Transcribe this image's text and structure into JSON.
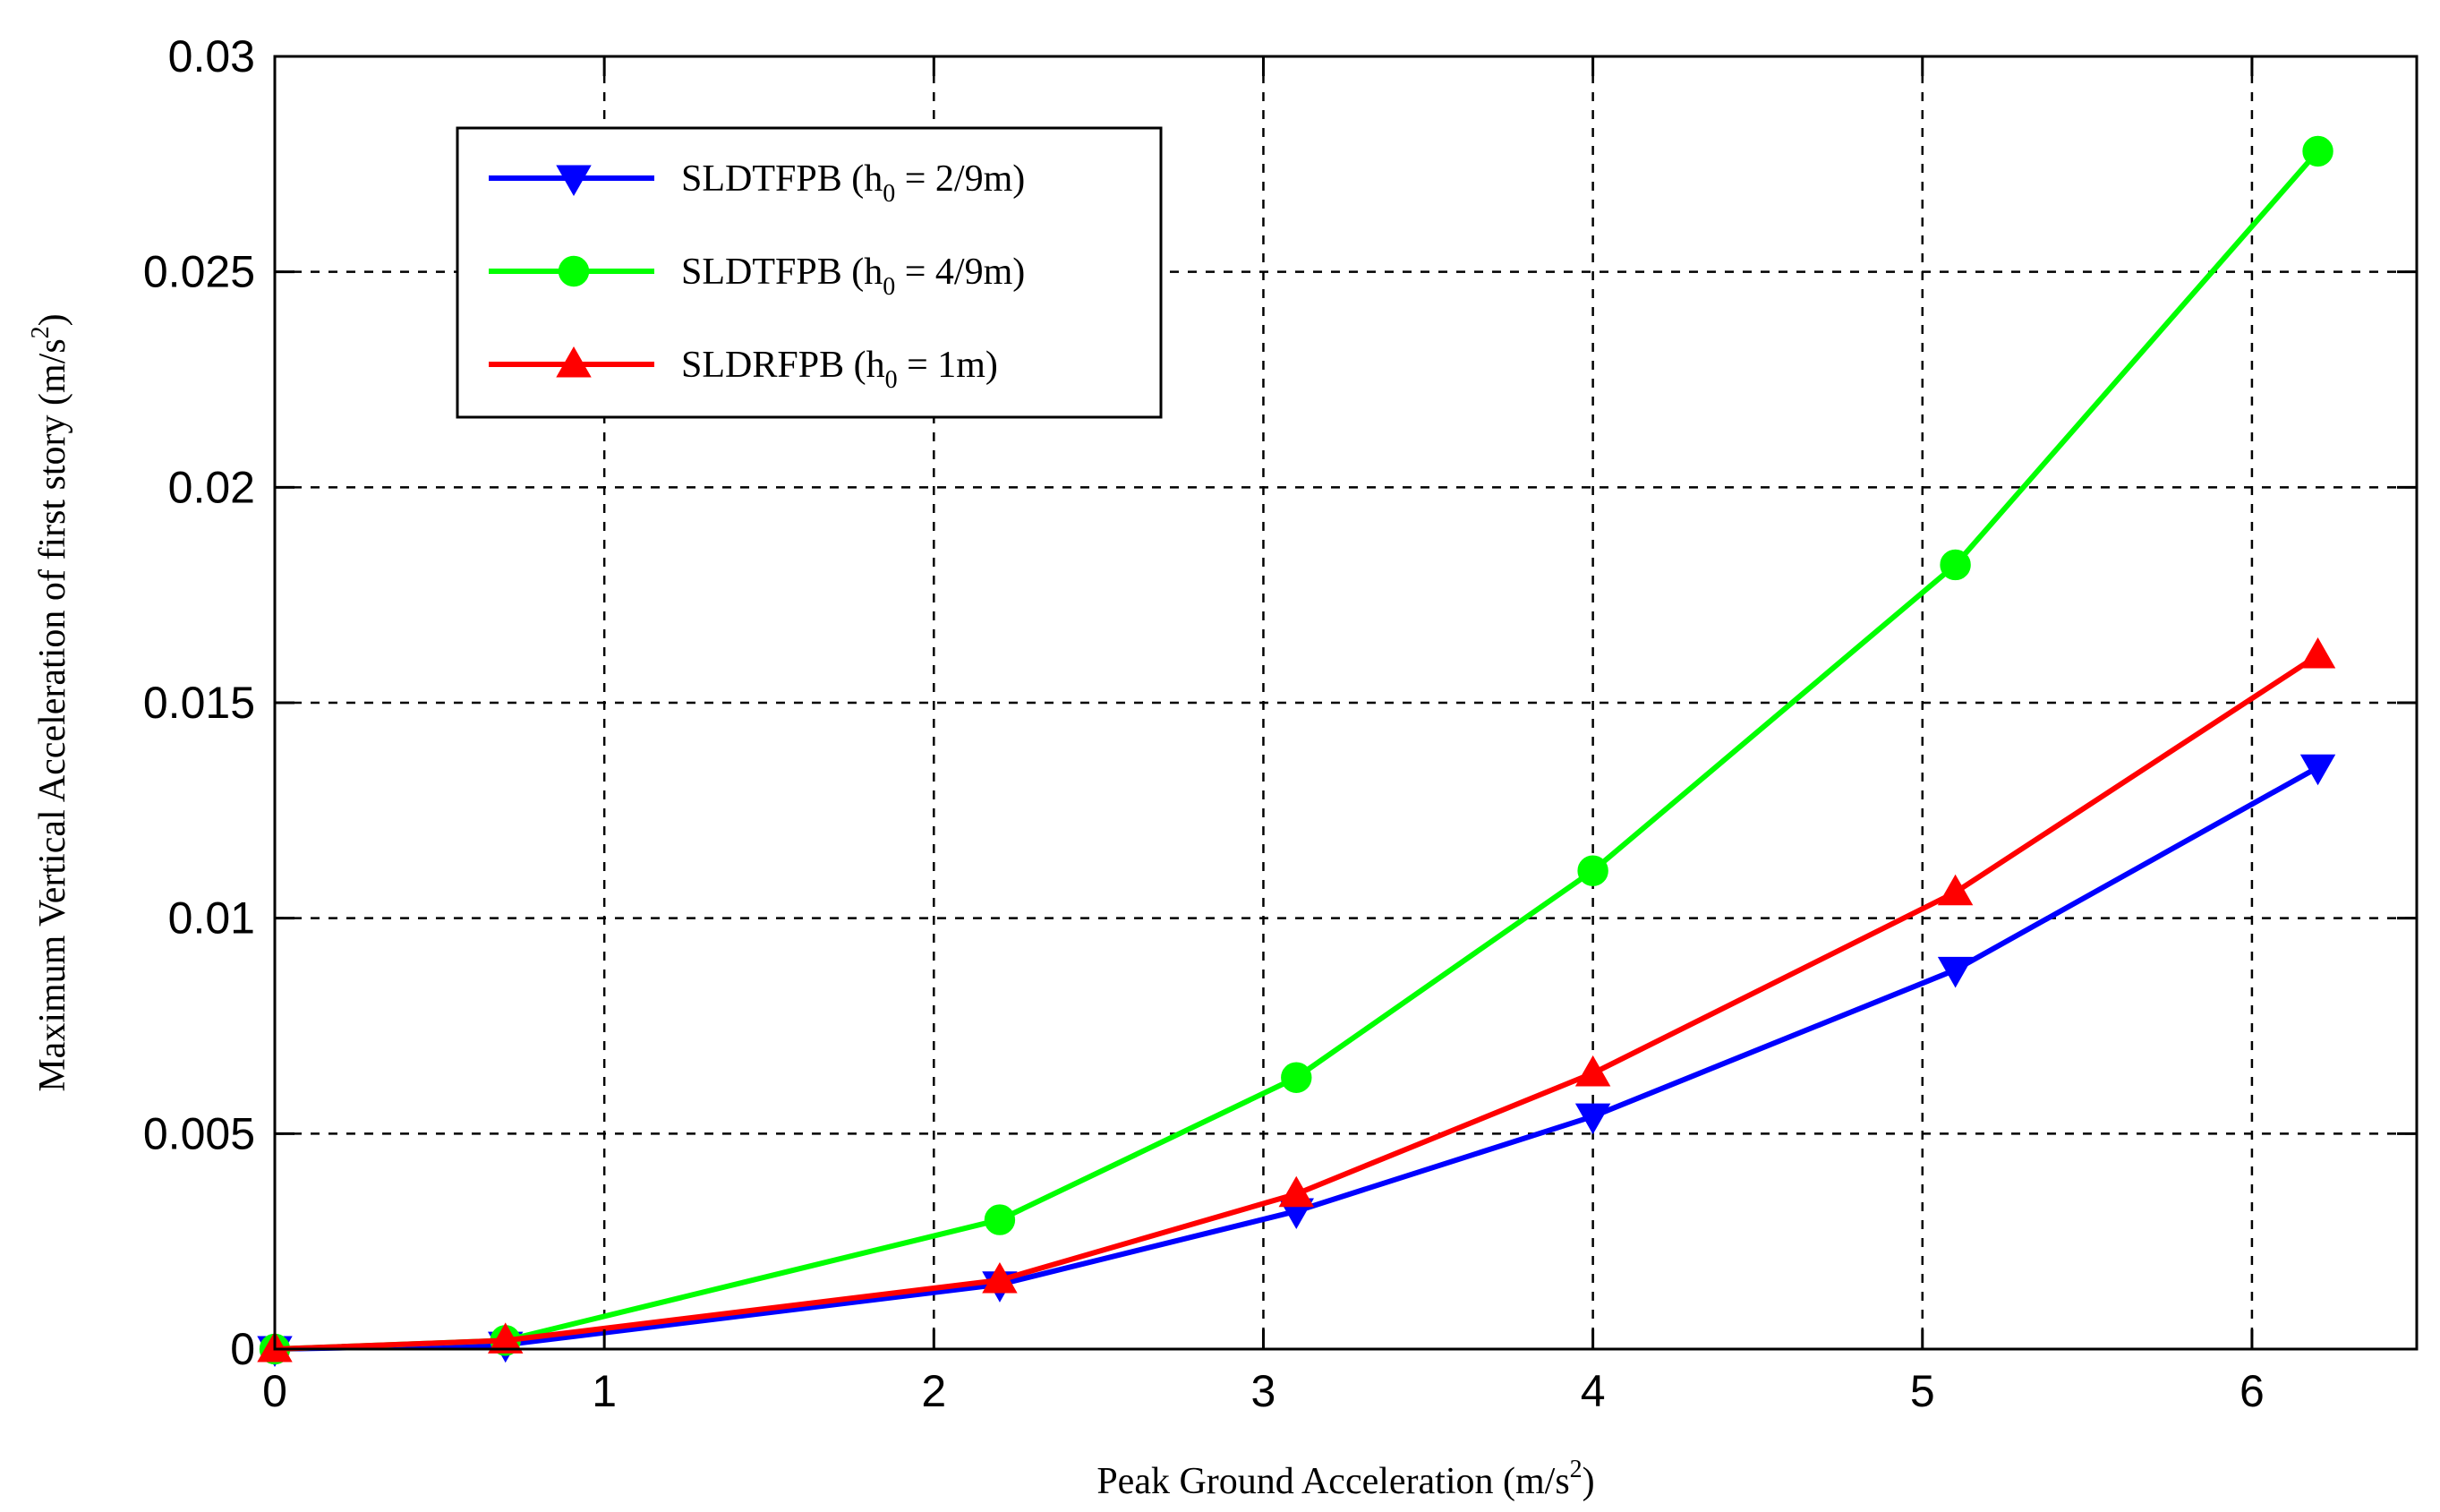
{
  "chart_data": {
    "type": "line",
    "title": "",
    "xlabel": {
      "prefix": "Peak Ground Acceleration (m/s",
      "sup": "2",
      "suffix": ")"
    },
    "ylabel": {
      "prefix": "Maximum Vertical Acceleration of first story (m/s",
      "sup": "2",
      "suffix": ")"
    },
    "xlim": [
      0,
      6.5
    ],
    "ylim": [
      0,
      0.03
    ],
    "xticks": [
      0,
      1,
      2,
      3,
      4,
      5,
      6
    ],
    "xtick_labels": [
      "0",
      "1",
      "2",
      "3",
      "4",
      "5",
      "6"
    ],
    "yticks": [
      0,
      0.005,
      0.01,
      0.015,
      0.02,
      0.025,
      0.03
    ],
    "ytick_labels": [
      "0",
      "0.005",
      "0.01",
      "0.015",
      "0.02",
      "0.025",
      "0.03"
    ],
    "grid": true,
    "legend_position": "top-left",
    "series": [
      {
        "name": "SLDTFPB (h0 = 2/9m)",
        "legend": {
          "prefix": "SLDTFPB (h",
          "sub": "0",
          "suffix": " = 2/9m)"
        },
        "color": "#0000ff",
        "marker": "triangle-down",
        "x": [
          0,
          0.7,
          2.2,
          3.1,
          4.0,
          5.1,
          6.2
        ],
        "y": [
          0,
          0.0001,
          0.0015,
          0.0032,
          0.0054,
          0.0088,
          0.0135
        ]
      },
      {
        "name": "SLDTFPB (h0 = 4/9m)",
        "legend": {
          "prefix": "SLDTFPB (h",
          "sub": "0",
          "suffix": " = 4/9m)"
        },
        "color": "#00ff00",
        "marker": "circle",
        "x": [
          0,
          0.7,
          2.2,
          3.1,
          4.0,
          5.1,
          6.2
        ],
        "y": [
          0,
          0.0002,
          0.003,
          0.0063,
          0.0111,
          0.0182,
          0.0278
        ]
      },
      {
        "name": "SLDRFPB (h0 = 1m)",
        "legend": {
          "prefix": "SLDRFPB (h",
          "sub": "0",
          "suffix": " = 1m)"
        },
        "color": "#ff0000",
        "marker": "triangle-up",
        "x": [
          0,
          0.7,
          2.2,
          3.1,
          4.0,
          5.1,
          6.2
        ],
        "y": [
          0,
          0.0002,
          0.0016,
          0.0036,
          0.0064,
          0.0106,
          0.0161
        ]
      }
    ]
  }
}
